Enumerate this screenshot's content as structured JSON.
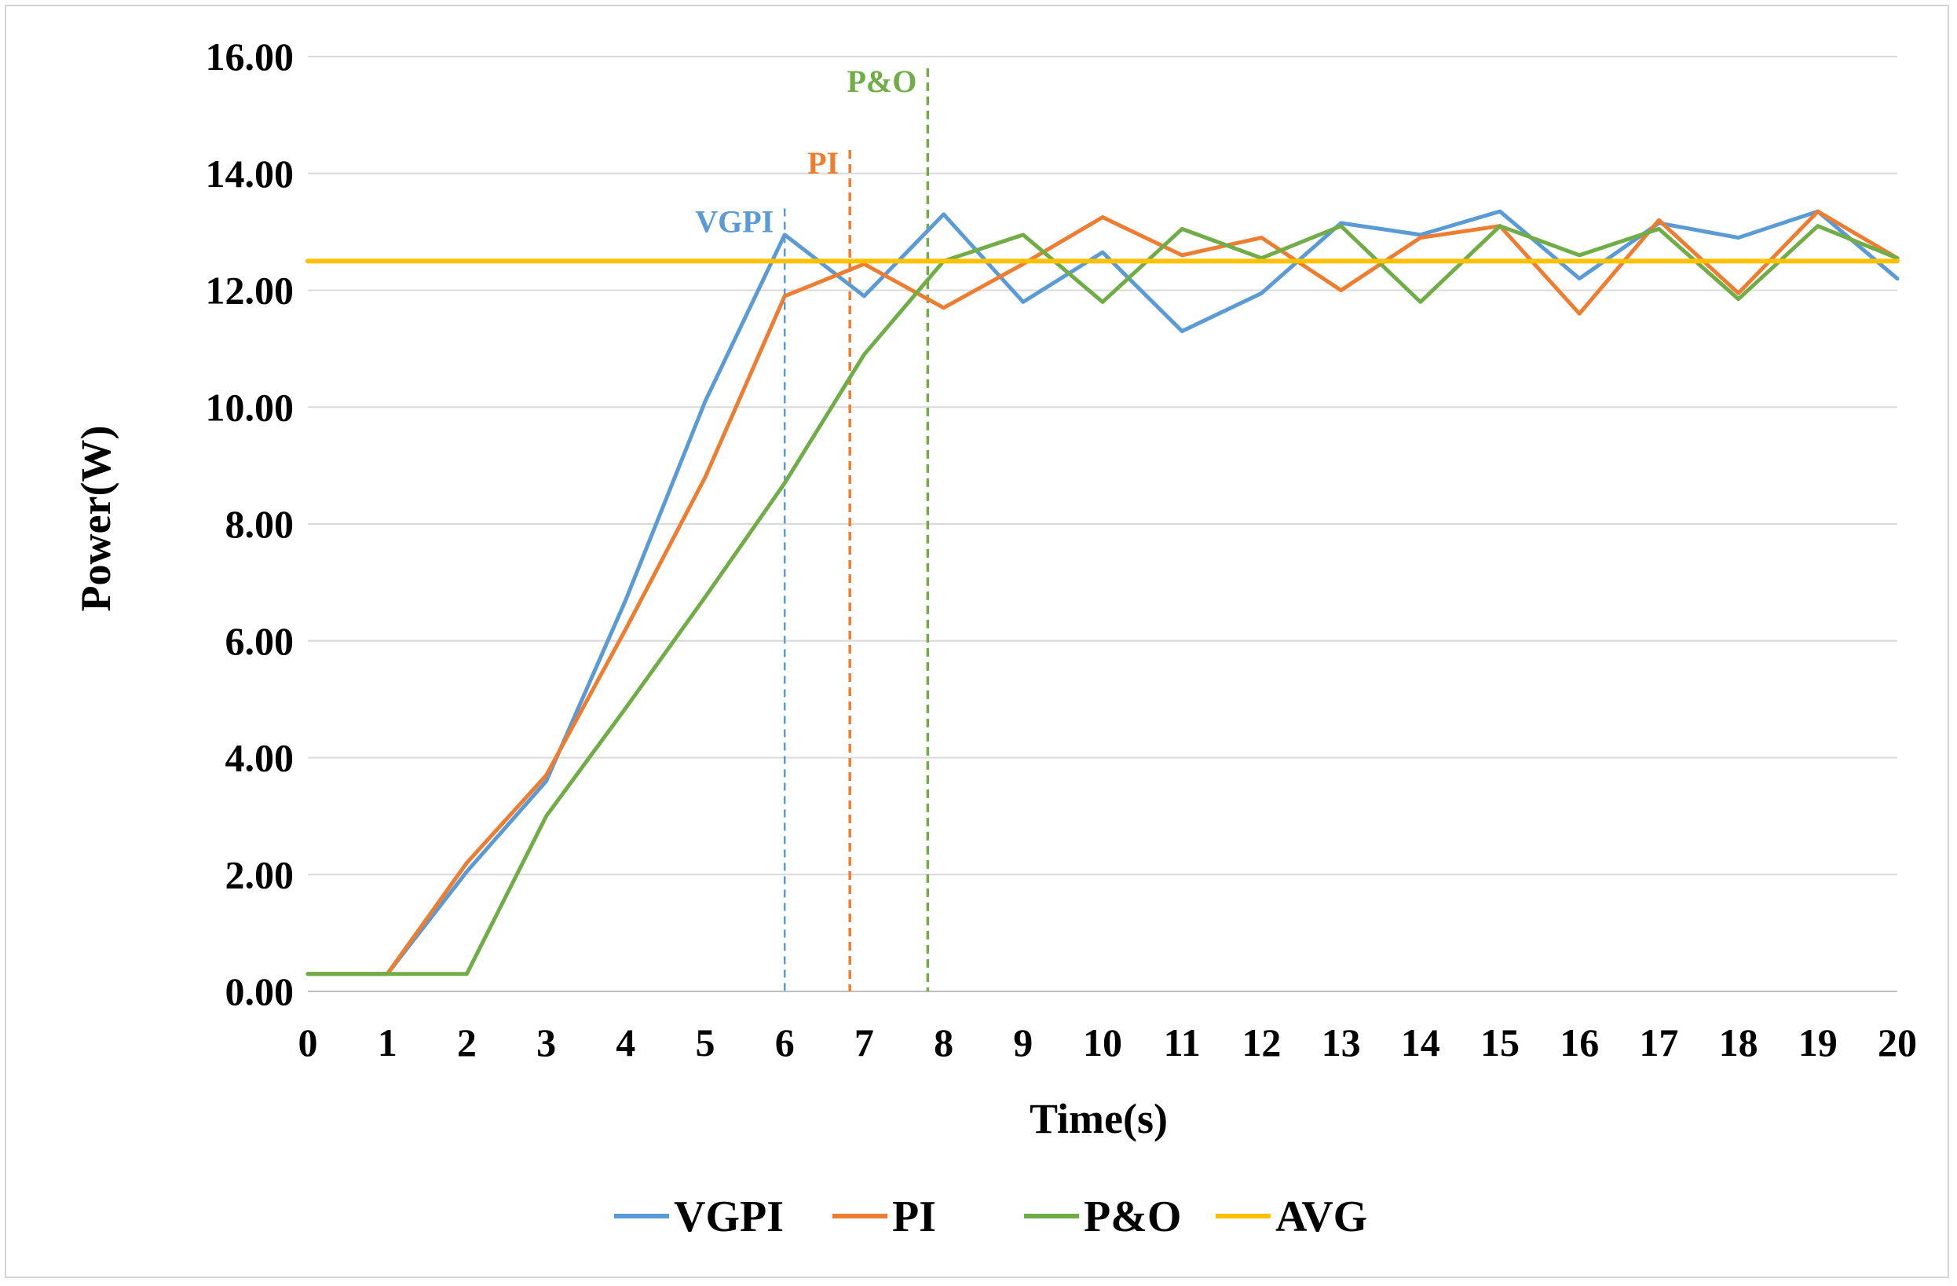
{
  "chart_data": {
    "type": "line",
    "title": "",
    "xlabel": "Time(s)",
    "ylabel": "Power(W)",
    "x": [
      0,
      1,
      2,
      3,
      4,
      5,
      6,
      7,
      8,
      9,
      10,
      11,
      12,
      13,
      14,
      15,
      16,
      17,
      18,
      19,
      20
    ],
    "xticks": [
      "0",
      "1",
      "2",
      "3",
      "4",
      "5",
      "6",
      "7",
      "8",
      "9",
      "10",
      "11",
      "12",
      "13",
      "14",
      "15",
      "16",
      "17",
      "18",
      "19",
      "20"
    ],
    "xlim": [
      0,
      20
    ],
    "ylim": [
      0,
      16
    ],
    "yticks": [
      "0.00",
      "2.00",
      "4.00",
      "6.00",
      "8.00",
      "10.00",
      "12.00",
      "14.00",
      "16.00"
    ],
    "grid": true,
    "legend_position": "bottom",
    "series": [
      {
        "name": "VGPI",
        "color": "#5b9bd5",
        "values": [
          0.3,
          0.3,
          2.05,
          3.6,
          6.7,
          10.1,
          12.95,
          11.9,
          13.3,
          11.8,
          12.65,
          11.3,
          11.95,
          13.15,
          12.95,
          13.35,
          12.2,
          13.15,
          12.9,
          13.35,
          12.2
        ]
      },
      {
        "name": "PI",
        "color": "#ed7d31",
        "values": [
          0.3,
          0.3,
          2.2,
          3.7,
          6.2,
          8.8,
          11.9,
          12.45,
          11.7,
          12.45,
          13.25,
          12.6,
          12.9,
          12.0,
          12.9,
          13.1,
          11.6,
          13.2,
          11.95,
          13.35,
          12.55
        ]
      },
      {
        "name": "P&O",
        "color": "#70ad47",
        "values": [
          0.3,
          0.3,
          0.3,
          3.0,
          4.85,
          6.75,
          8.7,
          10.9,
          12.5,
          12.95,
          11.8,
          13.05,
          12.55,
          13.1,
          11.8,
          13.1,
          12.6,
          13.05,
          11.85,
          13.1,
          12.55
        ]
      },
      {
        "name": "AVG",
        "color": "#ffc000",
        "values": [
          12.5,
          12.5,
          12.5,
          12.5,
          12.5,
          12.5,
          12.5,
          12.5,
          12.5,
          12.5,
          12.5,
          12.5,
          12.5,
          12.5,
          12.5,
          12.5,
          12.5,
          12.5,
          12.5,
          12.5,
          12.5
        ]
      }
    ],
    "annotations": [
      {
        "label": "VGPI",
        "x": 6.0,
        "y_top": 13.4,
        "color": "#5b9bd5",
        "dash": "thin"
      },
      {
        "label": "PI",
        "x": 6.82,
        "y_top": 14.4,
        "color": "#ed7d31",
        "dash": "thick"
      },
      {
        "label": "P&O",
        "x": 7.8,
        "y_top": 15.8,
        "color": "#70ad47",
        "dash": "thick"
      }
    ],
    "legend": [
      "VGPI",
      "PI",
      "P&O",
      "AVG"
    ]
  }
}
